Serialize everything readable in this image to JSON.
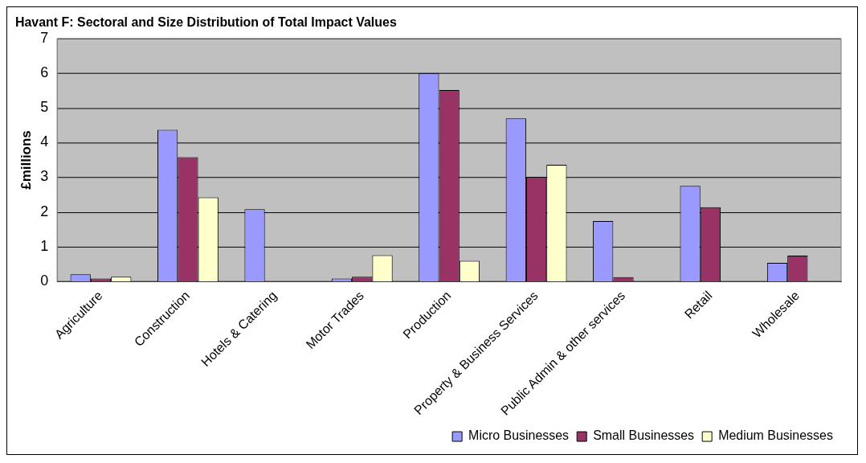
{
  "chart_data": {
    "type": "bar",
    "title": "Havant F: Sectoral and Size Distribution of Total Impact Values",
    "ylabel": "£millions",
    "categories": [
      "Agriculture",
      "Construction",
      "Hotels & Catering",
      "Motor Trades",
      "Production",
      "Property & Business Services",
      "Public Admin & other services",
      "Retail",
      "Wholesale"
    ],
    "series": [
      {
        "name": "Micro Businesses",
        "color": "#9999ff",
        "values": [
          0.2,
          4.37,
          2.08,
          0.08,
          6.0,
          4.7,
          1.74,
          2.75,
          0.53
        ]
      },
      {
        "name": "Small Businesses",
        "color": "#993366",
        "values": [
          0.08,
          3.58,
          null,
          0.13,
          5.52,
          3.01,
          0.12,
          2.14,
          0.74
        ]
      },
      {
        "name": "Medium Businesses",
        "color": "#ffffcc",
        "values": [
          0.13,
          2.42,
          null,
          0.75,
          0.59,
          3.36,
          null,
          null,
          null
        ]
      }
    ],
    "ylim": [
      0,
      7
    ],
    "yticks": [
      0,
      1,
      2,
      3,
      4,
      5,
      6,
      7
    ],
    "grid": "y",
    "legend": "bottom right"
  }
}
